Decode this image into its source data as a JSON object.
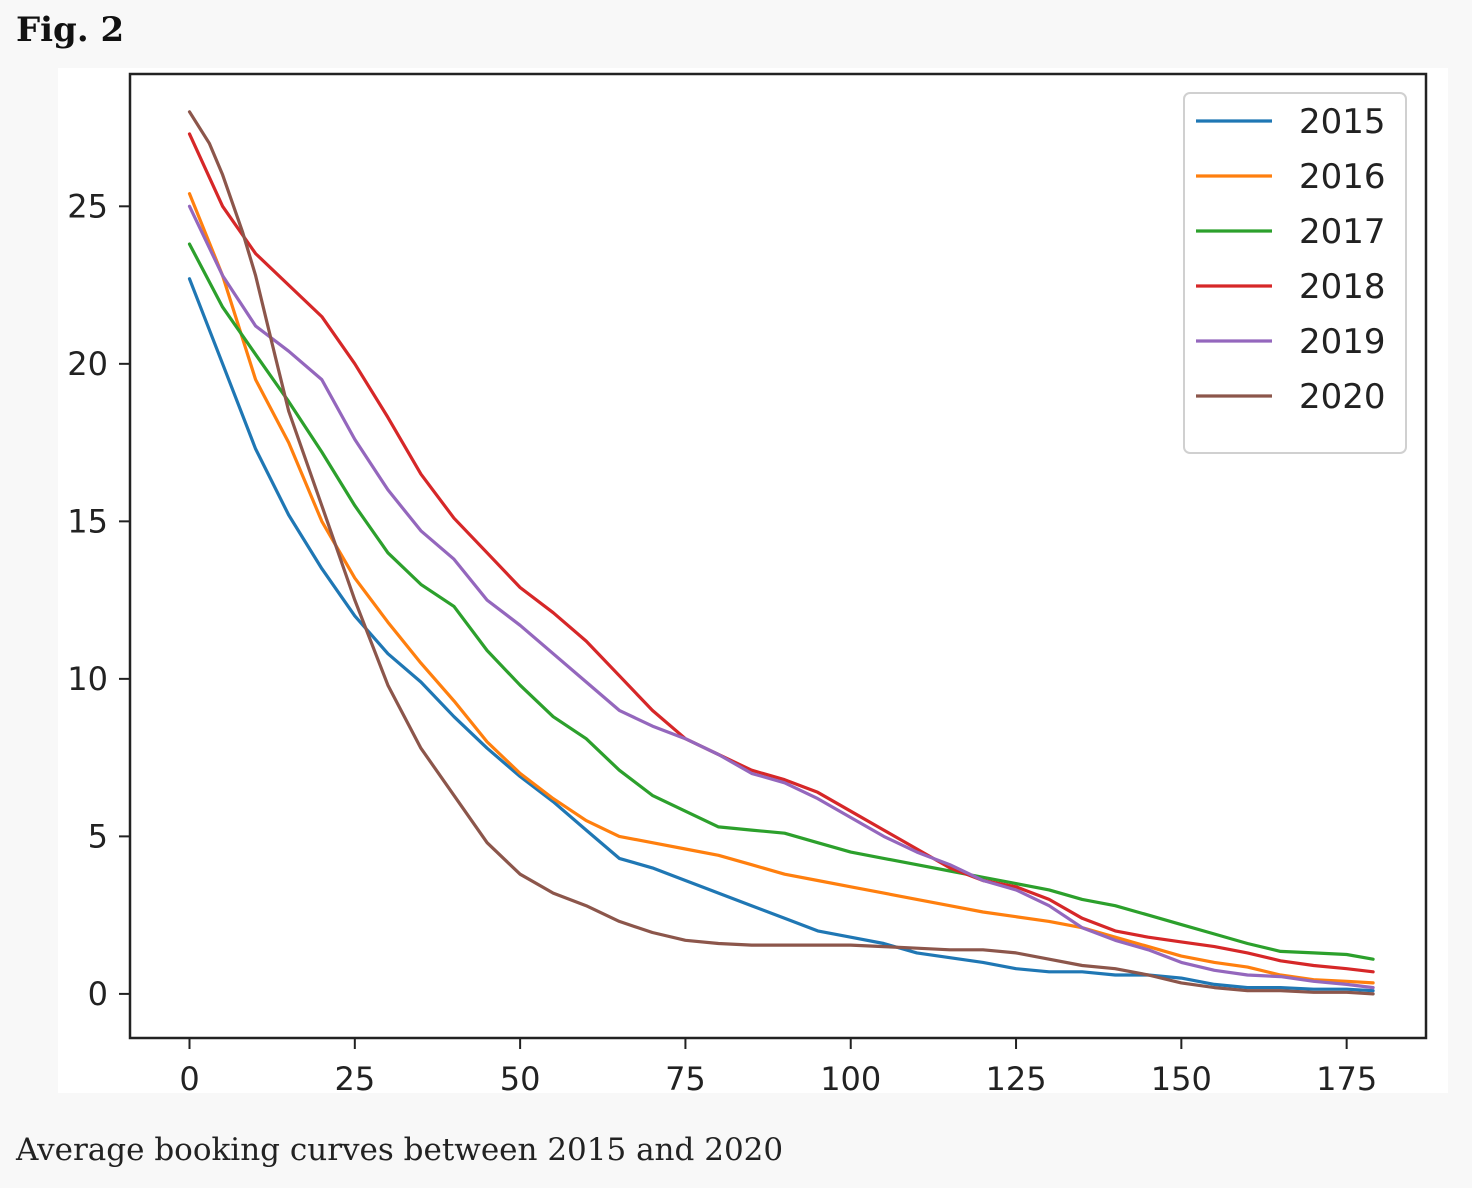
{
  "figure": {
    "label": "Fig. 2",
    "caption": "Average booking curves between 2015 and 2020"
  },
  "chart_data": {
    "type": "line",
    "title": "",
    "xlabel": "",
    "ylabel": "",
    "xlim": [
      -9,
      187
    ],
    "ylim": [
      -1.4,
      29.2
    ],
    "xticks": [
      0,
      25,
      50,
      75,
      100,
      125,
      150,
      175
    ],
    "yticks": [
      0,
      5,
      10,
      15,
      20,
      25
    ],
    "grid": false,
    "legend_position": "top-right",
    "series": [
      {
        "name": "2015",
        "color": "#1f77b4",
        "x": [
          0,
          5,
          10,
          15,
          20,
          25,
          30,
          35,
          40,
          45,
          50,
          55,
          60,
          65,
          70,
          75,
          80,
          85,
          90,
          95,
          100,
          105,
          110,
          115,
          120,
          125,
          130,
          135,
          140,
          145,
          150,
          155,
          160,
          165,
          170,
          175,
          179
        ],
        "y": [
          22.7,
          20.0,
          17.3,
          15.2,
          13.5,
          12.0,
          10.8,
          9.9,
          8.8,
          7.8,
          6.9,
          6.1,
          5.2,
          4.3,
          4.0,
          3.6,
          3.2,
          2.8,
          2.4,
          2.0,
          1.8,
          1.6,
          1.3,
          1.15,
          1.0,
          0.8,
          0.7,
          0.7,
          0.6,
          0.6,
          0.5,
          0.3,
          0.2,
          0.2,
          0.15,
          0.15,
          0.1
        ]
      },
      {
        "name": "2016",
        "color": "#ff7f0e",
        "x": [
          0,
          5,
          10,
          15,
          20,
          25,
          30,
          35,
          40,
          45,
          50,
          55,
          60,
          65,
          70,
          75,
          80,
          85,
          90,
          95,
          100,
          105,
          110,
          115,
          120,
          125,
          130,
          135,
          140,
          145,
          150,
          155,
          160,
          165,
          170,
          175,
          179
        ],
        "y": [
          25.4,
          22.8,
          19.5,
          17.5,
          15.0,
          13.2,
          11.8,
          10.5,
          9.3,
          8.0,
          7.0,
          6.2,
          5.5,
          5.0,
          4.8,
          4.6,
          4.4,
          4.1,
          3.8,
          3.6,
          3.4,
          3.2,
          3.0,
          2.8,
          2.6,
          2.45,
          2.3,
          2.1,
          1.8,
          1.5,
          1.2,
          1.0,
          0.85,
          0.6,
          0.45,
          0.4,
          0.35
        ]
      },
      {
        "name": "2017",
        "color": "#2ca02c",
        "x": [
          0,
          5,
          10,
          15,
          20,
          25,
          30,
          35,
          40,
          45,
          50,
          55,
          60,
          65,
          70,
          75,
          80,
          85,
          90,
          95,
          100,
          105,
          110,
          115,
          120,
          125,
          130,
          135,
          140,
          145,
          150,
          155,
          160,
          165,
          170,
          175,
          179
        ],
        "y": [
          23.8,
          21.8,
          20.3,
          18.8,
          17.2,
          15.5,
          14.0,
          13.0,
          12.3,
          10.9,
          9.8,
          8.8,
          8.1,
          7.1,
          6.3,
          5.8,
          5.3,
          5.2,
          5.1,
          4.8,
          4.5,
          4.3,
          4.1,
          3.9,
          3.7,
          3.5,
          3.3,
          3.0,
          2.8,
          2.5,
          2.2,
          1.9,
          1.6,
          1.35,
          1.3,
          1.25,
          1.1
        ]
      },
      {
        "name": "2018",
        "color": "#d62728",
        "x": [
          0,
          5,
          10,
          15,
          20,
          25,
          30,
          35,
          40,
          45,
          50,
          55,
          60,
          65,
          70,
          75,
          80,
          85,
          90,
          95,
          100,
          105,
          110,
          115,
          120,
          125,
          130,
          135,
          140,
          145,
          150,
          155,
          160,
          165,
          170,
          175,
          179
        ],
        "y": [
          27.3,
          25.0,
          23.5,
          22.5,
          21.5,
          20.0,
          18.3,
          16.5,
          15.1,
          14.0,
          12.9,
          12.1,
          11.2,
          10.1,
          9.0,
          8.1,
          7.6,
          7.1,
          6.8,
          6.4,
          5.8,
          5.2,
          4.6,
          4.0,
          3.6,
          3.4,
          3.0,
          2.4,
          2.0,
          1.8,
          1.65,
          1.5,
          1.3,
          1.05,
          0.9,
          0.8,
          0.7
        ]
      },
      {
        "name": "2019",
        "color": "#9467bd",
        "x": [
          0,
          5,
          10,
          15,
          20,
          25,
          30,
          35,
          40,
          45,
          50,
          55,
          60,
          65,
          70,
          75,
          80,
          85,
          90,
          95,
          100,
          105,
          110,
          115,
          120,
          125,
          130,
          135,
          140,
          145,
          150,
          155,
          160,
          165,
          170,
          175,
          179
        ],
        "y": [
          25.0,
          22.8,
          21.2,
          20.4,
          19.5,
          17.6,
          16.0,
          14.7,
          13.8,
          12.5,
          11.7,
          10.8,
          9.9,
          9.0,
          8.5,
          8.1,
          7.6,
          7.0,
          6.7,
          6.2,
          5.6,
          5.0,
          4.5,
          4.1,
          3.6,
          3.3,
          2.8,
          2.1,
          1.7,
          1.4,
          1.0,
          0.75,
          0.6,
          0.55,
          0.4,
          0.3,
          0.2
        ]
      },
      {
        "name": "2020",
        "color": "#8c564b",
        "x": [
          0,
          3,
          5,
          8,
          10,
          13,
          15,
          20,
          25,
          30,
          35,
          40,
          45,
          50,
          55,
          60,
          65,
          70,
          75,
          80,
          85,
          90,
          95,
          100,
          105,
          110,
          115,
          120,
          125,
          130,
          135,
          140,
          145,
          150,
          155,
          160,
          165,
          170,
          175,
          179
        ],
        "y": [
          28.0,
          27.0,
          26.0,
          24.2,
          22.8,
          20.2,
          18.5,
          15.5,
          12.5,
          9.8,
          7.8,
          6.3,
          4.8,
          3.8,
          3.2,
          2.8,
          2.3,
          1.95,
          1.7,
          1.6,
          1.55,
          1.55,
          1.55,
          1.55,
          1.5,
          1.45,
          1.4,
          1.4,
          1.3,
          1.1,
          0.9,
          0.8,
          0.6,
          0.35,
          0.2,
          0.1,
          0.1,
          0.05,
          0.05,
          0.0
        ]
      }
    ]
  }
}
